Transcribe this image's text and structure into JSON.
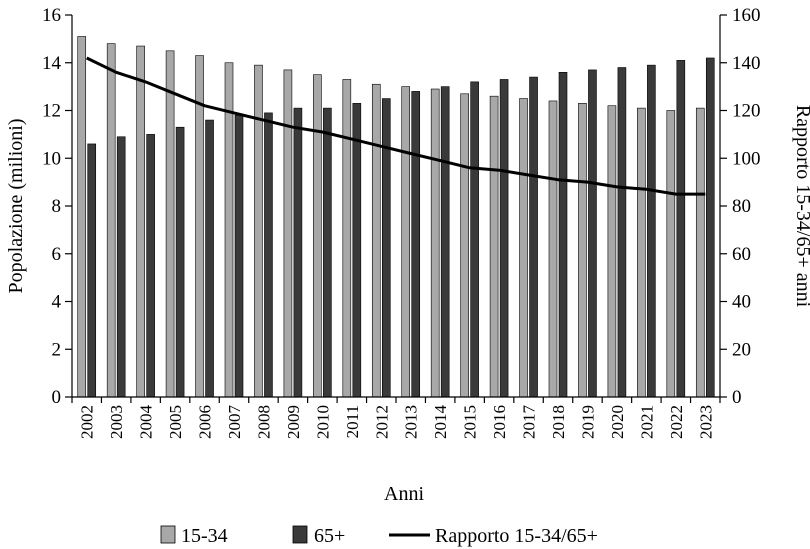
{
  "chart_data": {
    "type": "bar",
    "xlabel": "Anni",
    "ylabel": "Popolazione (milioni)",
    "y2label": "Rapporto 15-34/65+ anni",
    "ylim": [
      0,
      16
    ],
    "y2lim": [
      0,
      160
    ],
    "yticks": [
      "0",
      "2",
      "4",
      "6",
      "8",
      "10",
      "12",
      "14",
      "16"
    ],
    "y2ticks": [
      "0",
      "20",
      "40",
      "60",
      "80",
      "100",
      "120",
      "140",
      "160"
    ],
    "grid": false,
    "legend_position": "bottom",
    "categories": [
      "2002",
      "2003",
      "2004",
      "2005",
      "2006",
      "2007",
      "2008",
      "2009",
      "2010",
      "2011",
      "2012",
      "2013",
      "2014",
      "2015",
      "2016",
      "2017",
      "2018",
      "2019",
      "2020",
      "2021",
      "2022",
      "2023"
    ],
    "series": [
      {
        "name": "15-34",
        "kind": "bar",
        "axis": "left",
        "color": "#a8a8a8",
        "values": [
          15.1,
          14.8,
          14.7,
          14.5,
          14.3,
          14.0,
          13.9,
          13.7,
          13.5,
          13.3,
          13.1,
          13.0,
          12.9,
          12.7,
          12.6,
          12.5,
          12.4,
          12.3,
          12.2,
          12.1,
          12.0,
          12.1
        ]
      },
      {
        "name": "65+",
        "kind": "bar",
        "axis": "left",
        "color": "#3a3a3a",
        "values": [
          10.6,
          10.9,
          11.0,
          11.3,
          11.6,
          11.8,
          11.9,
          12.1,
          12.1,
          12.3,
          12.5,
          12.8,
          13.0,
          13.2,
          13.3,
          13.4,
          13.6,
          13.7,
          13.8,
          13.9,
          14.1,
          14.2
        ]
      },
      {
        "name": "Rapporto 15-34/65+",
        "kind": "line",
        "axis": "right",
        "color": "#000000",
        "values": [
          142,
          136,
          132,
          127,
          122,
          119,
          116,
          113,
          111,
          108,
          105,
          102,
          99,
          96,
          95,
          93,
          91,
          90,
          88,
          87,
          85,
          85
        ]
      }
    ]
  }
}
